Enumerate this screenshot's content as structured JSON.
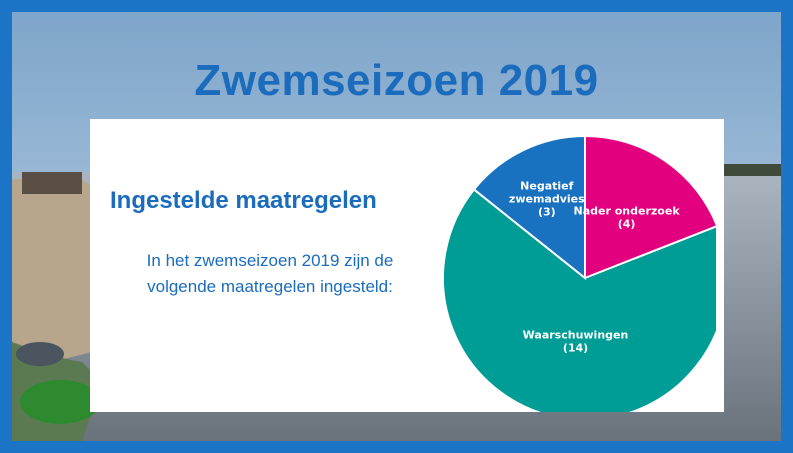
{
  "page": {
    "title": "Zwemseizoen 2019",
    "heading": "Ingestelde maatregelen",
    "body_text": "In het zwemseizoen 2019 zijn de volgende maatregelen ingesteld:"
  },
  "colors": {
    "border": "#1b74c5",
    "title": "#1b6cbc",
    "slice_nader": "#e3007e",
    "slice_waarschuwingen": "#009c96",
    "slice_negatief": "#1872c0"
  },
  "chart_data": {
    "type": "pie",
    "title": "",
    "slices": [
      {
        "label_lines": [
          "Nader onderzoek"
        ],
        "value_label": "(4)",
        "value": 4,
        "color": "#e3007e"
      },
      {
        "label_lines": [
          "Waarschuwingen"
        ],
        "value_label": "(14)",
        "value": 14,
        "color": "#009c96"
      },
      {
        "label_lines": [
          "Negatief",
          "zwemadvies"
        ],
        "value_label": "(3)",
        "value": 3,
        "color": "#1872c0"
      }
    ]
  }
}
